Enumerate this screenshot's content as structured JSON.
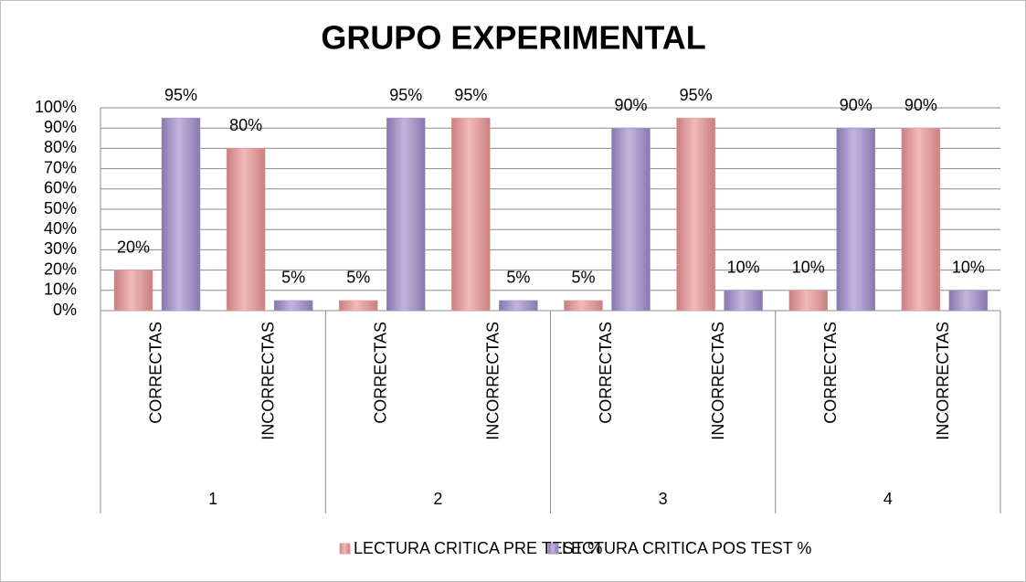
{
  "chart_data": {
    "type": "bar",
    "title": "GRUPO EXPERIMENTAL",
    "categories": [
      "CORRECTAS",
      "INCORRECTAS",
      "CORRECTAS",
      "INCORRECTAS",
      "CORRECTAS",
      "INCORRECTAS",
      "CORRECTAS",
      "INCORRECTAS"
    ],
    "groups": [
      "1",
      "2",
      "3",
      "4"
    ],
    "series": [
      {
        "name": "LECTURA CRITICA PRE TEST %",
        "color": "#e39c9c",
        "values": [
          20,
          80,
          5,
          95,
          5,
          95,
          10,
          90
        ],
        "value_labels": [
          "20%",
          "80%",
          "5%",
          "95%",
          "5%",
          "95%",
          "10%",
          "90%"
        ]
      },
      {
        "name": "LECTURA CRITICA POS TEST %",
        "color": "#a393c6",
        "values": [
          95,
          5,
          95,
          5,
          90,
          10,
          90,
          10
        ],
        "value_labels": [
          "95%",
          "5%",
          "95%",
          "5%",
          "90%",
          "10%",
          "90%",
          "10%"
        ]
      }
    ],
    "ylim": [
      0,
      100
    ],
    "yticks": [
      {
        "value": 0,
        "label": "0%"
      },
      {
        "value": 10,
        "label": "10%"
      },
      {
        "value": 20,
        "label": "20%"
      },
      {
        "value": 30,
        "label": "30%"
      },
      {
        "value": 40,
        "label": "40%"
      },
      {
        "value": 50,
        "label": "50%"
      },
      {
        "value": 60,
        "label": "60%"
      },
      {
        "value": 70,
        "label": "70%"
      },
      {
        "value": 80,
        "label": "80%"
      },
      {
        "value": 90,
        "label": "90%"
      },
      {
        "value": 100,
        "label": "100%"
      }
    ],
    "grid": true,
    "legend": "bottom"
  }
}
